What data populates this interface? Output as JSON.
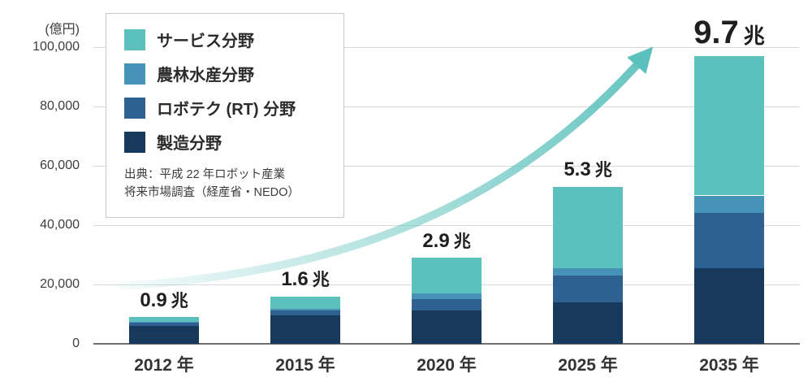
{
  "chart_data": {
    "type": "bar",
    "stacked": true,
    "title": "",
    "ylabel_unit": "(億円)",
    "ylim": [
      0,
      100000
    ],
    "ytick_step": 20000,
    "ytick_labels": [
      "0",
      "20,000",
      "40,000",
      "60,000",
      "80,000",
      "100,000"
    ],
    "grid": true,
    "categories": [
      "2012 年",
      "2015 年",
      "2020 年",
      "2025 年",
      "2035 年"
    ],
    "series": [
      {
        "name": "製造分野",
        "color": "#17395c",
        "values": [
          6000,
          9600,
          11200,
          14000,
          25500
        ]
      },
      {
        "name": "ロボテク (RT) 分野",
        "color": "#2e6191",
        "values": [
          1100,
          1500,
          3900,
          9000,
          18500
        ]
      },
      {
        "name": "農林水産分野",
        "color": "#4793b8",
        "values": [
          400,
          800,
          1900,
          2500,
          6000
        ]
      },
      {
        "name": "サービス分野",
        "color": "#5cc1bc",
        "values": [
          1500,
          4100,
          12000,
          27500,
          47000
        ]
      }
    ],
    "totals": [
      9000,
      16000,
      29000,
      53000,
      97000
    ],
    "total_labels": [
      {
        "value": "0.9",
        "unit": "兆",
        "emphasis": false
      },
      {
        "value": "1.6",
        "unit": "兆",
        "emphasis": false
      },
      {
        "value": "2.9",
        "unit": "兆",
        "emphasis": false
      },
      {
        "value": "5.3",
        "unit": "兆",
        "emphasis": false
      },
      {
        "value": "9.7",
        "unit": "兆",
        "emphasis": true
      }
    ],
    "legend_position": "top-left",
    "legend_series_order": [
      3,
      2,
      1,
      0
    ],
    "source_lines": [
      "出典：平成 22 年ロボット産業",
      "将来市場調査（経産省・NEDO）"
    ],
    "arrow_color": "#5cc1bc"
  }
}
